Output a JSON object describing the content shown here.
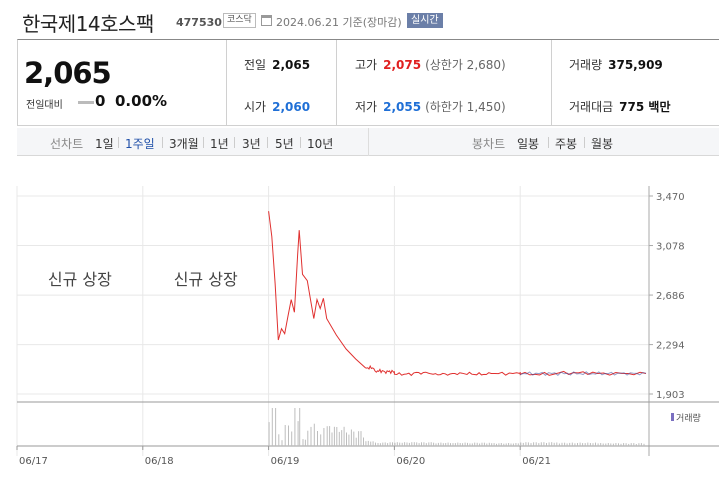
{
  "header": {
    "name": "한국제14호스팩",
    "code": "477530",
    "market": "코스닥",
    "date": "2024.06.21 기준(장마감)",
    "realtime": "실시간"
  },
  "summary": {
    "price": "2,065",
    "change_label": "전일대비",
    "change_value": "0",
    "change_pct": "0.00%",
    "prev_close": {
      "label": "전일",
      "value": "2,065"
    },
    "open": {
      "label": "시가",
      "value": "2,060"
    },
    "high": {
      "label": "고가",
      "value": "2,075",
      "sub": "(상한가 2,680)"
    },
    "low": {
      "label": "저가",
      "value": "2,055",
      "sub": "(하한가 1,450)"
    },
    "volume": {
      "label": "거래량",
      "value": "375,909"
    },
    "amount": {
      "label": "거래대금",
      "value": "775 백만"
    }
  },
  "period_bar": {
    "line_label": "선차트",
    "line_periods": [
      "1일",
      "1주일",
      "3개월",
      "1년",
      "3년",
      "5년",
      "10년"
    ],
    "active": "1주일",
    "candle_label": "봉차트",
    "candle_periods": [
      "일봉",
      "주봉",
      "월봉"
    ]
  },
  "chart_data": {
    "type": "line",
    "annotations": [
      "신규 상장",
      "신규 상장"
    ],
    "x_ticks": [
      "06/17",
      "06/18",
      "06/19",
      "06/20",
      "06/21"
    ],
    "y_ticks": [
      3470,
      3078,
      2686,
      2294,
      1903
    ],
    "ylim": [
      1903,
      3470
    ],
    "volume_legend": "거래량",
    "colors": {
      "price": "#e0302f",
      "price_late": "#3b4fa0",
      "volume": "#bdbdbd",
      "grid": "#e8e8e8"
    },
    "series": [
      {
        "values": [
          {
            "x": "06/19 09:00",
            "y": 3350
          },
          {
            "x": "06/19 09:10",
            "y": 3150
          },
          {
            "x": "06/19 09:20",
            "y": 2780
          },
          {
            "x": "06/19 09:30",
            "y": 2330
          },
          {
            "x": "06/19 09:40",
            "y": 2420
          },
          {
            "x": "06/19 09:50",
            "y": 2380
          },
          {
            "x": "06/19 10:00",
            "y": 2520
          },
          {
            "x": "06/19 10:10",
            "y": 2650
          },
          {
            "x": "06/19 10:20",
            "y": 2550
          },
          {
            "x": "06/19 10:30",
            "y": 3000
          },
          {
            "x": "06/19 10:35",
            "y": 3200
          },
          {
            "x": "06/19 10:45",
            "y": 2850
          },
          {
            "x": "06/19 11:00",
            "y": 2800
          },
          {
            "x": "06/19 11:10",
            "y": 2650
          },
          {
            "x": "06/19 11:20",
            "y": 2500
          },
          {
            "x": "06/19 11:30",
            "y": 2650
          },
          {
            "x": "06/19 11:40",
            "y": 2580
          },
          {
            "x": "06/19 11:50",
            "y": 2660
          },
          {
            "x": "06/19 12:00",
            "y": 2500
          },
          {
            "x": "06/19 12:30",
            "y": 2370
          },
          {
            "x": "06/19 13:00",
            "y": 2260
          },
          {
            "x": "06/19 13:30",
            "y": 2180
          },
          {
            "x": "06/19 14:00",
            "y": 2110
          },
          {
            "x": "06/19 14:30",
            "y": 2085
          },
          {
            "x": "06/19 15:00",
            "y": 2080
          },
          {
            "x": "06/19 15:30",
            "y": 2070
          },
          {
            "x": "06/20 09:00",
            "y": 2060
          },
          {
            "x": "06/20 10:00",
            "y": 2070
          },
          {
            "x": "06/20 11:00",
            "y": 2060
          },
          {
            "x": "06/20 12:00",
            "y": 2065
          },
          {
            "x": "06/20 13:00",
            "y": 2060
          },
          {
            "x": "06/20 14:00",
            "y": 2065
          },
          {
            "x": "06/20 15:30",
            "y": 2065
          },
          {
            "x": "06/21 09:00",
            "y": 2060
          },
          {
            "x": "06/21 11:00",
            "y": 2070
          },
          {
            "x": "06/21 13:00",
            "y": 2065
          },
          {
            "x": "06/21 15:30",
            "y": 2065
          }
        ]
      }
    ]
  }
}
